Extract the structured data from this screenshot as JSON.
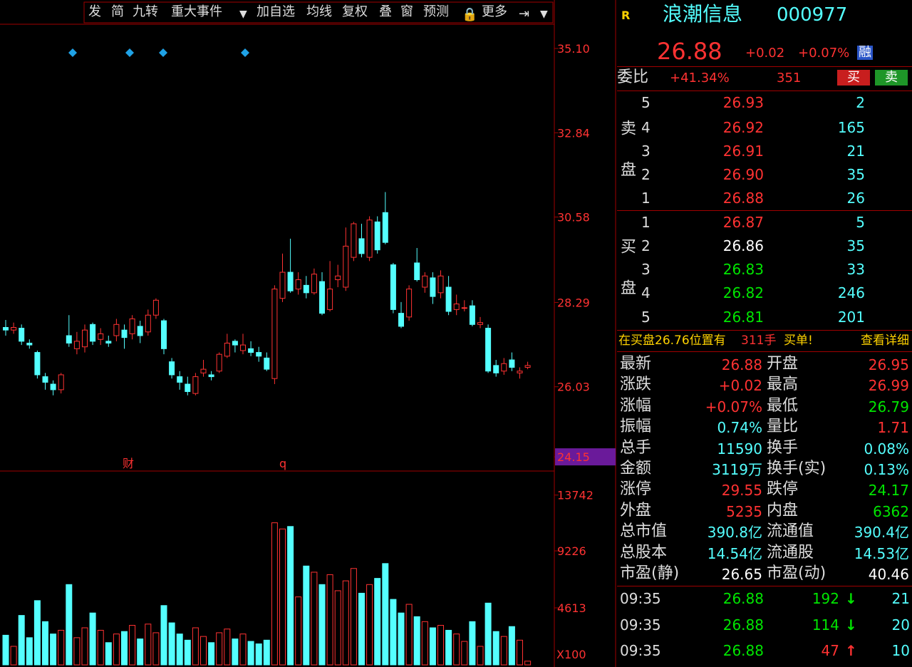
{
  "toolbar": [
    "发",
    "简",
    "九转",
    "重大事件",
    "加自选",
    "均线",
    "复权",
    "叠",
    "窗",
    "预测",
    "更多"
  ],
  "chart_data": [
    {
      "type": "candlestick",
      "up_color": "#ff3232",
      "down_color": "#54ffff",
      "open": [
        27.62,
        27.55,
        27.6,
        27.2,
        26.95,
        26.3,
        26.1,
        25.95,
        27.4,
        27.05,
        27.1,
        27.7,
        27.3,
        27.25,
        27.4,
        27.55,
        27.45,
        27.65,
        27.5,
        27.95,
        27.8,
        26.7,
        26.3,
        26.1,
        25.85,
        26.4,
        26.35,
        26.45,
        26.85,
        27.25,
        27.0,
        27.05,
        26.95,
        26.8,
        26.25,
        28.4,
        29.1,
        28.65,
        28.75,
        28.55,
        28.85,
        28.1,
        28.9,
        28.7,
        29.5,
        30.0,
        29.5,
        30.45,
        30.7,
        29.3,
        28.0,
        27.9,
        29.35,
        28.7,
        28.95,
        28.55,
        28.7,
        28.1,
        28.15,
        28.2,
        27.7,
        27.6,
        26.6,
        26.45,
        26.75,
        26.4,
        26.55
      ],
      "high": [
        27.82,
        27.75,
        27.7,
        27.3,
        27.0,
        26.4,
        26.2,
        26.4,
        27.95,
        27.5,
        27.7,
        27.75,
        27.6,
        27.4,
        27.85,
        27.7,
        27.95,
        27.8,
        28.1,
        28.4,
        27.85,
        26.8,
        26.45,
        26.3,
        26.4,
        26.75,
        26.45,
        26.95,
        27.45,
        27.3,
        27.45,
        27.25,
        27.1,
        26.95,
        28.75,
        29.6,
        30.0,
        29.1,
        29.0,
        29.2,
        29.1,
        29.4,
        29.3,
        30.3,
        30.45,
        30.4,
        30.6,
        30.6,
        31.25,
        29.35,
        28.3,
        28.75,
        29.75,
        29.1,
        29.1,
        29.15,
        29.0,
        28.5,
        28.35,
        28.35,
        27.9,
        27.7,
        26.75,
        26.8,
        26.95,
        26.55,
        26.7
      ],
      "low": [
        27.4,
        27.45,
        27.15,
        27.05,
        26.25,
        25.95,
        25.8,
        25.85,
        27.1,
        26.9,
        26.95,
        27.15,
        27.15,
        27.1,
        27.25,
        27.05,
        27.3,
        27.2,
        27.4,
        27.85,
        26.9,
        26.25,
        25.95,
        25.8,
        25.8,
        26.3,
        26.2,
        26.4,
        26.8,
        26.95,
        26.9,
        26.85,
        26.7,
        26.45,
        26.1,
        28.3,
        28.55,
        28.5,
        28.4,
        28.5,
        27.95,
        28.05,
        28.7,
        28.6,
        29.4,
        29.5,
        29.4,
        29.6,
        29.85,
        28.0,
        27.6,
        27.8,
        28.85,
        28.55,
        28.25,
        28.4,
        27.95,
        27.95,
        28.05,
        27.65,
        27.6,
        26.4,
        26.3,
        26.35,
        26.45,
        26.25,
        26.5
      ],
      "close": [
        27.55,
        27.62,
        27.25,
        27.15,
        26.35,
        26.15,
        25.95,
        26.35,
        27.2,
        27.25,
        27.55,
        27.25,
        27.45,
        27.2,
        27.7,
        27.35,
        27.85,
        27.4,
        27.95,
        28.35,
        27.05,
        26.35,
        26.15,
        25.9,
        26.3,
        26.5,
        26.3,
        26.9,
        27.2,
        27.15,
        27.15,
        26.95,
        26.85,
        26.5,
        28.65,
        29.1,
        28.6,
        28.9,
        28.55,
        29.05,
        28.0,
        28.65,
        29.0,
        29.8,
        30.4,
        29.6,
        30.5,
        29.7,
        29.9,
        28.1,
        27.65,
        28.65,
        28.9,
        29.0,
        28.45,
        29.0,
        28.05,
        28.25,
        28.15,
        27.7,
        27.75,
        26.45,
        26.4,
        26.65,
        26.55,
        26.45,
        26.6
      ],
      "ylim": [
        23.77,
        35.75
      ],
      "yticks": [
        {
          "value": 35.1,
          "label": "35.10"
        },
        {
          "value": 32.84,
          "label": "32.84"
        },
        {
          "value": 30.58,
          "label": "30.58"
        },
        {
          "value": 28.29,
          "label": "28.29"
        },
        {
          "value": 26.03,
          "label": "26.03"
        },
        {
          "value": 24.15,
          "label": "24.15"
        }
      ],
      "annotations": [
        "财",
        "q"
      ]
    },
    {
      "type": "bar",
      "values": [
        2400,
        1500,
        4000,
        2200,
        5200,
        3500,
        2500,
        2800,
        6500,
        2200,
        3000,
        4200,
        2800,
        1800,
        2500,
        2700,
        3200,
        2100,
        3300,
        2600,
        4800,
        3400,
        2500,
        2000,
        3000,
        2300,
        1800,
        2600,
        2900,
        2100,
        2500,
        1900,
        1700,
        2000,
        11500,
        11000,
        11200,
        5500,
        8000,
        7500,
        6500,
        7300,
        6000,
        6800,
        7800,
        5800,
        6500,
        7000,
        8200,
        5300,
        4200,
        4900,
        3900,
        3500,
        3000,
        3200,
        2800,
        2500,
        1900,
        3500,
        1500,
        5000,
        2700,
        2300,
        3100,
        2000,
        300
      ],
      "ylim": [
        0,
        15630
      ],
      "yticks": [
        4613,
        9226,
        13742
      ],
      "unit_label": "X100"
    }
  ],
  "quote": {
    "flag": "R",
    "name": "浪潮信息",
    "code": "000977",
    "price": "26.88",
    "change": "+0.02",
    "pct": "+0.07%",
    "badge": "融",
    "ratio_label": "委比",
    "ratio": "+41.34%",
    "ratio_diff": "351",
    "buy_btn": "买",
    "sell_btn": "卖"
  },
  "orderbook": {
    "sell_label": "卖盘",
    "buy_label": "买盘",
    "sell": [
      [
        "5",
        "26.93",
        "2"
      ],
      [
        "4",
        "26.92",
        "165"
      ],
      [
        "3",
        "26.91",
        "21"
      ],
      [
        "2",
        "26.90",
        "35"
      ],
      [
        "1",
        "26.88",
        "26"
      ]
    ],
    "buy": [
      [
        "1",
        "26.87",
        "5"
      ],
      [
        "2",
        "26.86",
        "35"
      ],
      [
        "3",
        "26.83",
        "33"
      ],
      [
        "4",
        "26.82",
        "246"
      ],
      [
        "5",
        "26.81",
        "201"
      ]
    ]
  },
  "banner": {
    "text": "在买盘26.76位置有",
    "amount": "311手",
    "suffix": "买单!",
    "link": "查看详细"
  },
  "stats": [
    [
      "最新",
      "26.88",
      "#ff3232",
      "开盘",
      "26.95",
      "#ff3232"
    ],
    [
      "涨跌",
      "+0.02",
      "#ff3232",
      "最高",
      "26.99",
      "#ff3232"
    ],
    [
      "涨幅",
      "+0.07%",
      "#ff3232",
      "最低",
      "26.79",
      "#00e600"
    ],
    [
      "振幅",
      "0.74%",
      "#54ffff",
      "量比",
      "1.71",
      "#ff3232"
    ],
    [
      "总手",
      "11590",
      "#54ffff",
      "换手",
      "0.08%",
      "#54ffff"
    ],
    [
      "金额",
      "3119万",
      "#54ffff",
      "换手(实)",
      "0.13%",
      "#54ffff"
    ],
    [
      "涨停",
      "29.55",
      "#ff3232",
      "跌停",
      "24.17",
      "#00e600"
    ],
    [
      "外盘",
      "5235",
      "#ff3232",
      "内盘",
      "6362",
      "#00e600"
    ],
    [
      "总市值",
      "390.8亿",
      "#54ffff",
      "流通值",
      "390.4亿",
      "#54ffff"
    ],
    [
      "总股本",
      "14.54亿",
      "#54ffff",
      "流通股",
      "14.53亿",
      "#54ffff"
    ],
    [
      "市盈(静)",
      "26.65",
      "#ffffff",
      "市盈(动)",
      "40.46",
      "#ffffff"
    ]
  ],
  "ticks": [
    [
      "09:35",
      "26.88",
      "192",
      "↓",
      "21",
      "#00e600"
    ],
    [
      "09:35",
      "26.88",
      "114",
      "↓",
      "20",
      "#00e600"
    ],
    [
      "09:35",
      "26.88",
      "47",
      "↑",
      "10",
      "#ff3232"
    ]
  ]
}
